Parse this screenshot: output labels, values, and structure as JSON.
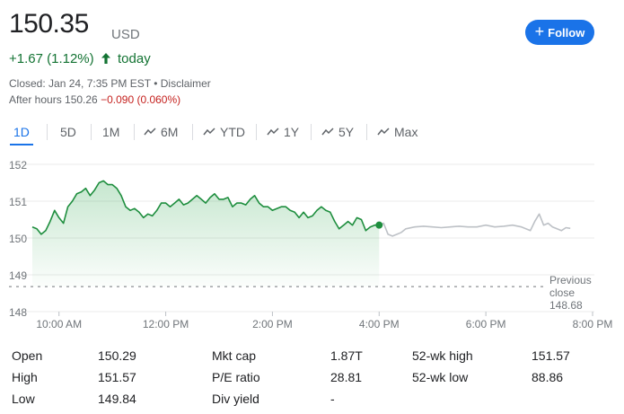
{
  "quote": {
    "price": "150.35",
    "currency": "USD",
    "change_text": "+1.67 (1.12%)",
    "period_label": "today",
    "closed_text": "Closed: Jan 24, 7:35 PM EST",
    "separator": "•",
    "disclaimer": "Disclaimer",
    "after_hours_label": "After hours 150.26",
    "after_hours_change": "−0.090 (0.060%)",
    "positive_color": "#137333",
    "negative_color": "#c5221f"
  },
  "follow_button": {
    "label": "Follow",
    "icon": "plus-icon",
    "color": "#1a73e8"
  },
  "tabs": [
    {
      "label": "1D",
      "active": true,
      "icon": ""
    },
    {
      "label": "5D",
      "active": false,
      "icon": ""
    },
    {
      "label": "1M",
      "active": false,
      "icon": ""
    },
    {
      "label": "6M",
      "active": false,
      "icon": "trend-icon"
    },
    {
      "label": "YTD",
      "active": false,
      "icon": "trend-icon"
    },
    {
      "label": "1Y",
      "active": false,
      "icon": "trend-icon"
    },
    {
      "label": "5Y",
      "active": false,
      "icon": "trend-icon"
    },
    {
      "label": "Max",
      "active": false,
      "icon": "trend-icon"
    }
  ],
  "chart_data": {
    "type": "line",
    "ylim": [
      148,
      152
    ],
    "yticks": [
      "152",
      "151",
      "150",
      "149",
      "148"
    ],
    "xticks": [
      "10:00 AM",
      "12:00 PM",
      "2:00 PM",
      "4:00 PM",
      "6:00 PM",
      "8:00 PM"
    ],
    "xlim": [
      "9:30 AM",
      "8:00 PM"
    ],
    "grid": true,
    "series": [
      {
        "session": "regular",
        "color": "#1e8e3e",
        "x": [
          "9:30",
          "9:35",
          "9:40",
          "9:45",
          "9:50",
          "9:55",
          "10:00",
          "10:05",
          "10:10",
          "10:15",
          "10:20",
          "10:25",
          "10:30",
          "10:35",
          "10:40",
          "10:45",
          "10:50",
          "10:55",
          "11:00",
          "11:05",
          "11:10",
          "11:15",
          "11:20",
          "11:25",
          "11:30",
          "11:35",
          "11:40",
          "11:45",
          "11:50",
          "11:55",
          "12:00",
          "12:05",
          "12:10",
          "12:15",
          "12:20",
          "12:25",
          "12:30",
          "12:35",
          "12:40",
          "12:45",
          "12:50",
          "12:55",
          "13:00",
          "13:05",
          "13:10",
          "13:15",
          "13:20",
          "13:25",
          "13:30",
          "13:35",
          "13:40",
          "13:45",
          "13:50",
          "13:55",
          "14:00",
          "14:05",
          "14:10",
          "14:15",
          "14:20",
          "14:25",
          "14:30",
          "14:35",
          "14:40",
          "14:45",
          "14:50",
          "14:55",
          "15:00",
          "15:05",
          "15:10",
          "15:15",
          "15:20",
          "15:25",
          "15:30",
          "15:35",
          "15:40",
          "15:45",
          "15:50",
          "15:55",
          "16:00"
        ],
        "values": [
          150.3,
          150.25,
          150.1,
          150.2,
          150.45,
          150.75,
          150.55,
          150.4,
          150.85,
          151.0,
          151.2,
          151.25,
          151.35,
          151.15,
          151.3,
          151.5,
          151.55,
          151.45,
          151.45,
          151.35,
          151.15,
          150.85,
          150.75,
          150.8,
          150.7,
          150.55,
          150.65,
          150.6,
          150.75,
          150.95,
          150.95,
          150.85,
          150.95,
          151.05,
          150.9,
          150.95,
          151.05,
          151.15,
          151.05,
          150.95,
          151.1,
          151.2,
          151.05,
          151.05,
          151.1,
          150.85,
          150.95,
          150.95,
          150.9,
          151.05,
          151.15,
          150.95,
          150.85,
          150.85,
          150.75,
          150.8,
          150.85,
          150.85,
          150.75,
          150.7,
          150.55,
          150.7,
          150.55,
          150.6,
          150.75,
          150.85,
          150.75,
          150.7,
          150.45,
          150.25,
          150.35,
          150.45,
          150.35,
          150.55,
          150.5,
          150.2,
          150.3,
          150.35,
          150.35
        ]
      },
      {
        "session": "after-hours",
        "color": "#bdc1c6",
        "x": [
          "16:00",
          "16:05",
          "16:10",
          "16:15",
          "16:20",
          "16:25",
          "16:30",
          "16:40",
          "16:50",
          "17:00",
          "17:10",
          "17:20",
          "17:30",
          "17:40",
          "17:50",
          "18:00",
          "18:10",
          "18:20",
          "18:30",
          "18:40",
          "18:50",
          "18:55",
          "19:00",
          "19:05",
          "19:10",
          "19:15",
          "19:20",
          "19:25",
          "19:30",
          "19:35"
        ],
        "values": [
          150.35,
          150.4,
          150.1,
          150.05,
          150.1,
          150.15,
          150.25,
          150.3,
          150.32,
          150.3,
          150.28,
          150.3,
          150.32,
          150.3,
          150.3,
          150.35,
          150.3,
          150.32,
          150.35,
          150.3,
          150.2,
          150.45,
          150.65,
          150.35,
          150.4,
          150.3,
          150.25,
          150.2,
          150.28,
          150.26
        ]
      }
    ],
    "previous_close": 148.68,
    "previous_close_label": "Previous close",
    "previous_close_text": "148.68",
    "last_point_value": 150.35
  },
  "stats": [
    {
      "label1": "Open",
      "value1": "150.29",
      "label2": "Mkt cap",
      "value2": "1.87T",
      "label3": "52-wk high",
      "value3": "151.57"
    },
    {
      "label1": "High",
      "value1": "151.57",
      "label2": "P/E ratio",
      "value2": "28.81",
      "label3": "52-wk low",
      "value3": "88.86"
    },
    {
      "label1": "Low",
      "value1": "149.84",
      "label2": "Div yield",
      "value2": "-",
      "label3": "",
      "value3": ""
    }
  ]
}
